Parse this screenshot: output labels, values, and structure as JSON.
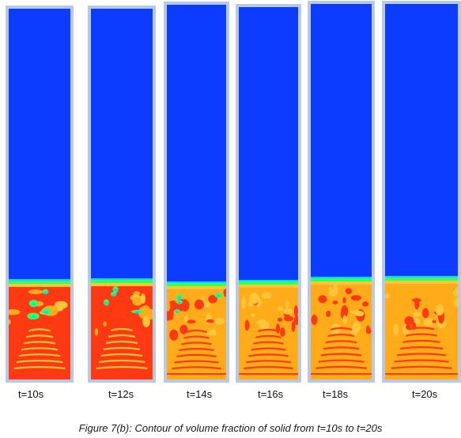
{
  "figure": {
    "caption": "Figure 7(b): Contour of volume fraction of solid from t=10s to t=20s",
    "panels": [
      {
        "label": "t=10s",
        "seed": 10
      },
      {
        "label": "t=12s",
        "seed": 12
      },
      {
        "label": "t=14s",
        "seed": 14
      },
      {
        "label": "t=16s",
        "seed": 16
      },
      {
        "label": "t=18s",
        "seed": 18
      },
      {
        "label": "t=20s",
        "seed": 20
      }
    ],
    "colors": {
      "frame": "#b8c9e6",
      "void": "#0c3cff",
      "interface_green": "#35ff5a",
      "interface_cyan": "#00d8ff",
      "solid_orange": "#ffab1a",
      "solid_yellow": "#ffc53a",
      "solid_red": "#ff3a12"
    }
  }
}
